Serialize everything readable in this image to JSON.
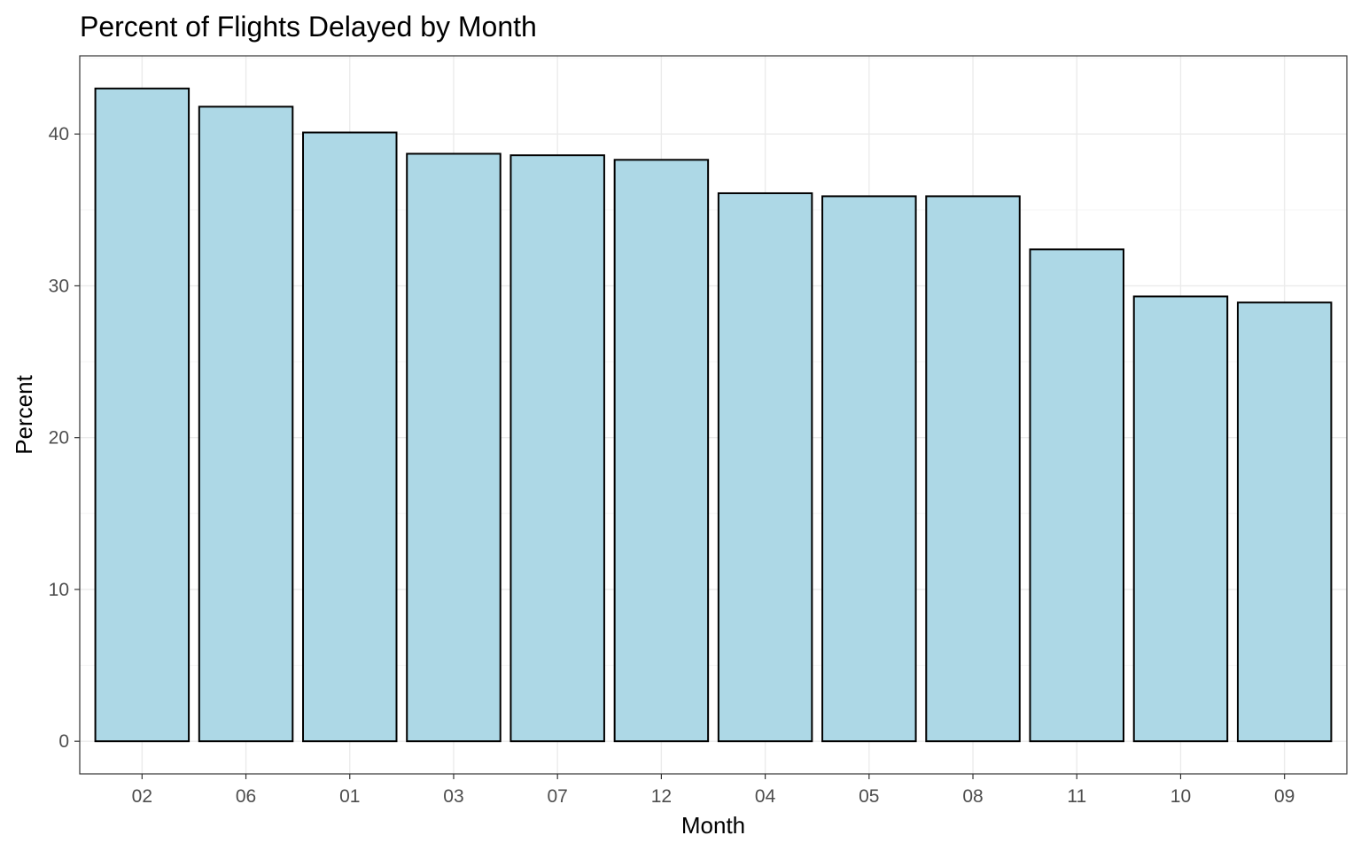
{
  "chart_data": {
    "type": "bar",
    "title": "Percent of Flights Delayed by Month",
    "xlabel": "Month",
    "ylabel": "Percent",
    "categories": [
      "02",
      "06",
      "01",
      "03",
      "07",
      "12",
      "04",
      "05",
      "08",
      "11",
      "10",
      "09"
    ],
    "values": [
      43.0,
      41.8,
      40.1,
      38.7,
      38.6,
      38.3,
      36.1,
      35.9,
      35.9,
      32.4,
      29.3,
      28.9
    ],
    "ylim": [
      -2.15,
      45.15
    ],
    "yticks": [
      0,
      10,
      20,
      30,
      40
    ],
    "grid": true,
    "legend": "none",
    "colors": {
      "bar_fill": "#add8e6",
      "bar_stroke": "#000000",
      "grid_major": "#ebebeb",
      "grid_minor": "#f5f5f5",
      "panel_border": "#333333"
    }
  }
}
